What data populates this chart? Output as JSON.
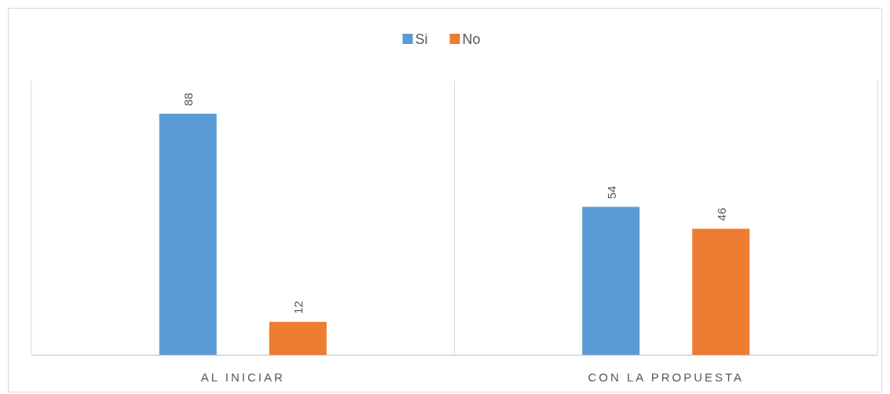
{
  "chart_data": {
    "type": "bar",
    "categories": [
      "AL INICIAR",
      "CON LA PROPUESTA"
    ],
    "series": [
      {
        "name": "Si",
        "color": "#5b9bd5",
        "values": [
          88,
          54
        ]
      },
      {
        "name": "No",
        "color": "#ed7d31",
        "values": [
          12,
          46
        ]
      }
    ],
    "ylim": [
      0,
      100
    ],
    "data_labels": true,
    "legend": "top",
    "grid": "x",
    "tick_labels": "x"
  }
}
